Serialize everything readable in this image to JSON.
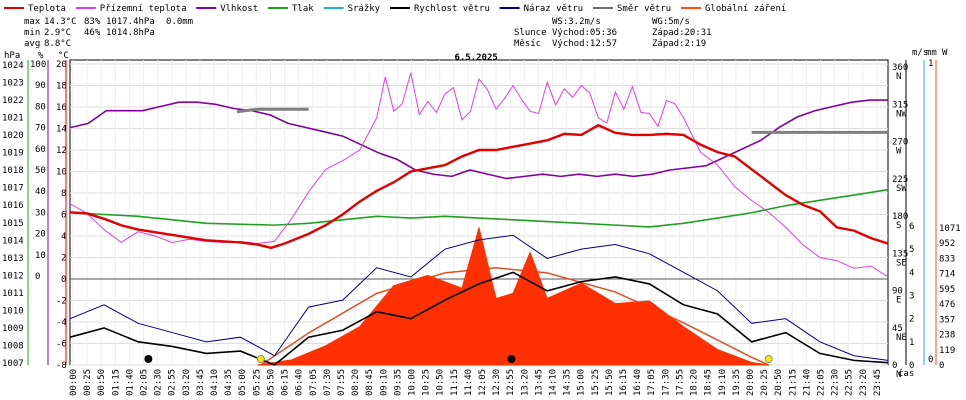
{
  "chart_data": {
    "type": "line",
    "title": "6.5.2025",
    "legend": {
      "placement": "top",
      "items": [
        {
          "label": "Teplota",
          "color": "#e00000"
        },
        {
          "label": "Přízemní teplota",
          "color": "#e040e0"
        },
        {
          "label": "Vlhkost",
          "color": "#8000a0"
        },
        {
          "label": "Tlak",
          "color": "#20a020"
        },
        {
          "label": "Srážky",
          "color": "#20b0d0"
        },
        {
          "label": "Rychlost větru",
          "color": "#000000"
        },
        {
          "label": "Náraz větru",
          "color": "#000080"
        },
        {
          "label": "Směr větru",
          "color": "#707070"
        },
        {
          "label": "Globální záření",
          "color": "#ff5010"
        }
      ]
    },
    "stats": {
      "max_label": "max",
      "max_temp": "14.3°C",
      "max_hum": "83%",
      "max_press": "1017.4hPa",
      "rain": "0.0mm",
      "min_label": "min",
      "min_temp": "2.9°C",
      "min_hum": "46%",
      "min_press": "1014.8hPa",
      "avg_label": "avg",
      "avg_temp": "8.8°C"
    },
    "info": {
      "ws": "WS:3.2m/s",
      "wg": "WG:5m/s",
      "slunce": "Slunce",
      "slunce_vychod": "Východ:05:36",
      "slunce_zapad": "Západ:20:31",
      "mesic": "Měsíc",
      "mesic_vychod": "Východ:12:57",
      "mesic_zapad": "Západ:2:19"
    },
    "axes": {
      "hpa": {
        "label": "hPa",
        "color": "#20a020",
        "ticks": [
          "1024",
          "1023",
          "1022",
          "1021",
          "1020",
          "1019",
          "1018",
          "1017",
          "1016",
          "1015",
          "1014",
          "1013",
          "1012",
          "1011",
          "1010",
          "1009",
          "1008",
          "1007"
        ]
      },
      "pct": {
        "label": "%",
        "color": "#8000a0",
        "ticks": [
          "100",
          "90",
          "80",
          "70",
          "60",
          "50",
          "40",
          "30",
          "20",
          "10",
          "0"
        ]
      },
      "temp": {
        "label": "°C",
        "color": "#e00000",
        "ticks": [
          "20",
          "18",
          "16",
          "14",
          "12",
          "10",
          "8",
          "6",
          "4",
          "2",
          "0",
          "-2",
          "-4",
          "-6",
          "-8"
        ]
      },
      "dir": {
        "label": "m/s",
        "ticks": [
          "360\nN",
          "315\nNW",
          "270\nW",
          "225\nSW",
          "180\nS",
          "135\nSE",
          "90\nE",
          "45\nNE",
          "0\nN"
        ]
      },
      "ms": {
        "label": "m/s",
        "ticks": [
          "6",
          "5",
          "4",
          "3",
          "2",
          "1",
          "0"
        ]
      },
      "mm": {
        "label": "mm",
        "color": "#20b0d0",
        "ticks": [
          "1",
          "0"
        ]
      },
      "w": {
        "label": "W",
        "color": "#ff5010",
        "ticks": [
          "1071",
          "952",
          "833",
          "714",
          "595",
          "476",
          "357",
          "238",
          "119",
          "0"
        ]
      },
      "x_ticks": [
        "00:00",
        "00:25",
        "00:50",
        "01:15",
        "01:40",
        "02:05",
        "02:30",
        "02:55",
        "03:20",
        "03:45",
        "04:10",
        "04:35",
        "05:00",
        "05:25",
        "05:50",
        "06:15",
        "06:40",
        "07:05",
        "07:30",
        "07:55",
        "08:20",
        "08:45",
        "09:10",
        "09:35",
        "10:00",
        "10:25",
        "10:50",
        "11:15",
        "11:40",
        "12:05",
        "12:30",
        "12:55",
        "13:20",
        "13:45",
        "14:10",
        "14:35",
        "15:00",
        "15:25",
        "15:50",
        "16:15",
        "16:40",
        "17:05",
        "17:30",
        "17:55",
        "18:20",
        "18:45",
        "19:10",
        "19:35",
        "20:00",
        "20:25",
        "20:50",
        "21:15",
        "21:40",
        "22:05",
        "22:30",
        "22:55",
        "23:20",
        "23:45"
      ],
      "x_label": "čas"
    },
    "series": {
      "teplota": [
        [
          0,
          6.2
        ],
        [
          0.5,
          6.1
        ],
        [
          1,
          5.6
        ],
        [
          1.5,
          5.0
        ],
        [
          2,
          4.6
        ],
        [
          3,
          4.1
        ],
        [
          4,
          3.6
        ],
        [
          5,
          3.4
        ],
        [
          5.5,
          3.2
        ],
        [
          5.9,
          2.9
        ],
        [
          6.3,
          3.3
        ],
        [
          7,
          4.2
        ],
        [
          7.5,
          5.0
        ],
        [
          8,
          6.0
        ],
        [
          8.5,
          7.2
        ],
        [
          9,
          8.2
        ],
        [
          9.5,
          9.0
        ],
        [
          10,
          10.0
        ],
        [
          10.5,
          10.3
        ],
        [
          11,
          10.6
        ],
        [
          11.5,
          11.4
        ],
        [
          12,
          12.0
        ],
        [
          12.5,
          12.0
        ],
        [
          13,
          12.3
        ],
        [
          13.5,
          12.6
        ],
        [
          14,
          12.9
        ],
        [
          14.5,
          13.5
        ],
        [
          15,
          13.4
        ],
        [
          15.5,
          14.3
        ],
        [
          16,
          13.6
        ],
        [
          16.5,
          13.4
        ],
        [
          17,
          13.4
        ],
        [
          17.5,
          13.5
        ],
        [
          18,
          13.4
        ],
        [
          18.5,
          12.5
        ],
        [
          19,
          11.8
        ],
        [
          19.5,
          11.4
        ],
        [
          20,
          10.2
        ],
        [
          20.5,
          9.0
        ],
        [
          21,
          7.8
        ],
        [
          21.5,
          6.9
        ],
        [
          22,
          6.3
        ],
        [
          22.5,
          4.8
        ],
        [
          23,
          4.5
        ],
        [
          23.5,
          3.8
        ],
        [
          24,
          3.3
        ]
      ],
      "prizemni": [
        [
          0,
          7.0
        ],
        [
          0.5,
          6.1
        ],
        [
          1,
          4.6
        ],
        [
          1.5,
          3.4
        ],
        [
          2,
          4.4
        ],
        [
          2.5,
          4.0
        ],
        [
          3,
          3.4
        ],
        [
          3.5,
          3.7
        ],
        [
          4,
          3.5
        ],
        [
          4.5,
          3.4
        ],
        [
          5,
          3.5
        ],
        [
          5.5,
          3.3
        ],
        [
          6,
          3.5
        ],
        [
          6.5,
          5.6
        ],
        [
          7,
          8.1
        ],
        [
          7.5,
          10.2
        ],
        [
          8,
          11.0
        ],
        [
          8.5,
          12.0
        ],
        [
          9,
          15.0
        ],
        [
          9.25,
          18.8
        ],
        [
          9.5,
          15.6
        ],
        [
          9.75,
          16.3
        ],
        [
          10,
          19.2
        ],
        [
          10.25,
          15.3
        ],
        [
          10.5,
          16.5
        ],
        [
          10.75,
          15.5
        ],
        [
          11,
          17.2
        ],
        [
          11.25,
          17.8
        ],
        [
          11.5,
          14.8
        ],
        [
          11.75,
          15.6
        ],
        [
          12,
          18.6
        ],
        [
          12.25,
          17.6
        ],
        [
          12.5,
          15.8
        ],
        [
          12.75,
          16.8
        ],
        [
          13,
          18.0
        ],
        [
          13.25,
          16.7
        ],
        [
          13.5,
          15.6
        ],
        [
          13.75,
          15.4
        ],
        [
          14,
          18.3
        ],
        [
          14.25,
          16.2
        ],
        [
          14.5,
          17.7
        ],
        [
          14.75,
          16.9
        ],
        [
          15,
          18.0
        ],
        [
          15.25,
          17.3
        ],
        [
          15.5,
          15.0
        ],
        [
          15.75,
          14.5
        ],
        [
          16,
          17.4
        ],
        [
          16.25,
          15.8
        ],
        [
          16.5,
          17.9
        ],
        [
          16.75,
          15.5
        ],
        [
          17,
          15.4
        ],
        [
          17.25,
          14.2
        ],
        [
          17.5,
          16.6
        ],
        [
          17.75,
          16.3
        ],
        [
          18,
          15.0
        ],
        [
          18.5,
          11.8
        ],
        [
          19,
          10.6
        ],
        [
          19.5,
          8.6
        ],
        [
          20,
          7.3
        ],
        [
          20.5,
          6.2
        ],
        [
          21,
          4.8
        ],
        [
          21.5,
          3.2
        ],
        [
          22,
          2.0
        ],
        [
          22.5,
          1.7
        ],
        [
          23,
          1.0
        ],
        [
          23.5,
          1.2
        ],
        [
          24,
          0.2
        ]
      ],
      "vlhkost": [
        [
          0,
          70
        ],
        [
          1,
          72
        ],
        [
          2,
          78
        ],
        [
          3,
          78
        ],
        [
          4,
          78
        ],
        [
          5,
          80
        ],
        [
          6,
          82
        ],
        [
          7,
          82
        ],
        [
          8,
          81
        ],
        [
          9,
          79
        ],
        [
          10,
          78
        ],
        [
          11,
          76
        ],
        [
          12,
          72
        ],
        [
          13,
          70
        ],
        [
          14,
          68
        ],
        [
          15,
          66
        ],
        [
          16,
          62
        ],
        [
          17,
          58
        ],
        [
          18,
          55
        ],
        [
          19,
          50
        ],
        [
          20,
          48
        ],
        [
          21,
          47
        ],
        [
          22,
          50
        ],
        [
          23,
          48
        ],
        [
          24,
          46
        ],
        [
          25,
          47
        ],
        [
          26,
          48
        ],
        [
          27,
          47
        ],
        [
          28,
          48
        ],
        [
          29,
          47
        ],
        [
          30,
          48
        ],
        [
          31,
          47
        ],
        [
          32,
          48
        ],
        [
          33,
          50
        ],
        [
          34,
          51
        ],
        [
          35,
          52
        ],
        [
          36,
          56
        ],
        [
          37,
          60
        ],
        [
          38,
          64
        ],
        [
          39,
          70
        ],
        [
          40,
          75
        ],
        [
          41,
          78
        ],
        [
          42,
          80
        ],
        [
          43,
          82
        ],
        [
          44,
          83
        ],
        [
          45,
          83
        ]
      ],
      "tlak": [
        [
          0,
          1015.6
        ],
        [
          2,
          1015.4
        ],
        [
          4,
          1015.0
        ],
        [
          6,
          1014.9
        ],
        [
          7,
          1015.0
        ],
        [
          8,
          1015.2
        ],
        [
          9,
          1015.4
        ],
        [
          10,
          1015.3
        ],
        [
          11,
          1015.4
        ],
        [
          12,
          1015.3
        ],
        [
          13,
          1015.2
        ],
        [
          14,
          1015.1
        ],
        [
          15,
          1015.0
        ],
        [
          16,
          1014.9
        ],
        [
          17,
          1014.8
        ],
        [
          18,
          1015.0
        ],
        [
          19,
          1015.3
        ],
        [
          20,
          1015.6
        ],
        [
          21,
          1016.0
        ],
        [
          22,
          1016.3
        ],
        [
          23,
          1016.6
        ],
        [
          24,
          1016.9
        ]
      ],
      "smer": [
        [
          4.9,
          306
        ],
        [
          5.5,
          309
        ],
        [
          6,
          309
        ],
        [
          7,
          309
        ],
        [
          20,
          281
        ],
        [
          21,
          281
        ],
        [
          22,
          281
        ],
        [
          23,
          281
        ],
        [
          24,
          281
        ]
      ],
      "vitr": [
        [
          0,
          1.2
        ],
        [
          1,
          1.6
        ],
        [
          2,
          1.0
        ],
        [
          3,
          0.8
        ],
        [
          4,
          0.5
        ],
        [
          5,
          0.6
        ],
        [
          6,
          0.0
        ],
        [
          7,
          1.2
        ],
        [
          8,
          1.5
        ],
        [
          9,
          2.3
        ],
        [
          10,
          2.0
        ],
        [
          11,
          2.8
        ],
        [
          12,
          3.5
        ],
        [
          13,
          4.0
        ],
        [
          14,
          3.2
        ],
        [
          15,
          3.6
        ],
        [
          16,
          3.8
        ],
        [
          17,
          3.5
        ],
        [
          18,
          2.6
        ],
        [
          19,
          2.2
        ],
        [
          20,
          1.0
        ],
        [
          21,
          1.4
        ],
        [
          22,
          0.5
        ],
        [
          23,
          0.2
        ],
        [
          24,
          0.1
        ]
      ],
      "naraz": [
        [
          0,
          2.0
        ],
        [
          1,
          2.6
        ],
        [
          2,
          1.8
        ],
        [
          3,
          1.4
        ],
        [
          4,
          1.0
        ],
        [
          5,
          1.2
        ],
        [
          6,
          0.4
        ],
        [
          7,
          2.5
        ],
        [
          8,
          2.8
        ],
        [
          9,
          4.2
        ],
        [
          10,
          3.8
        ],
        [
          11,
          5.0
        ],
        [
          12,
          5.4
        ],
        [
          13,
          5.6
        ],
        [
          14,
          4.6
        ],
        [
          15,
          5.0
        ],
        [
          16,
          5.2
        ],
        [
          17,
          4.8
        ],
        [
          18,
          4.0
        ],
        [
          19,
          3.2
        ],
        [
          20,
          1.8
        ],
        [
          21,
          2.0
        ],
        [
          22,
          1.0
        ],
        [
          23,
          0.4
        ],
        [
          24,
          0.2
        ]
      ],
      "zareni": [
        [
          5.5,
          0
        ],
        [
          6.5,
          40
        ],
        [
          7.5,
          150
        ],
        [
          8.5,
          300
        ],
        [
          9.5,
          620
        ],
        [
          10.5,
          700
        ],
        [
          11.5,
          600
        ],
        [
          12,
          1071
        ],
        [
          12.5,
          520
        ],
        [
          13,
          560
        ],
        [
          13.5,
          880
        ],
        [
          14,
          520
        ],
        [
          15,
          640
        ],
        [
          16,
          480
        ],
        [
          17,
          500
        ],
        [
          18,
          300
        ],
        [
          19,
          120
        ],
        [
          20,
          20
        ],
        [
          20.5,
          0
        ]
      ],
      "zareni_clear": [
        [
          5.6,
          0
        ],
        [
          7,
          250
        ],
        [
          9,
          560
        ],
        [
          11,
          720
        ],
        [
          12.5,
          760
        ],
        [
          14,
          720
        ],
        [
          16,
          570
        ],
        [
          18,
          330
        ],
        [
          20,
          60
        ],
        [
          20.5,
          0
        ]
      ]
    },
    "markers": {
      "sunrise": 5.6,
      "sunset": 20.5,
      "moonrise": 12.95,
      "moonset": 2.3
    }
  }
}
